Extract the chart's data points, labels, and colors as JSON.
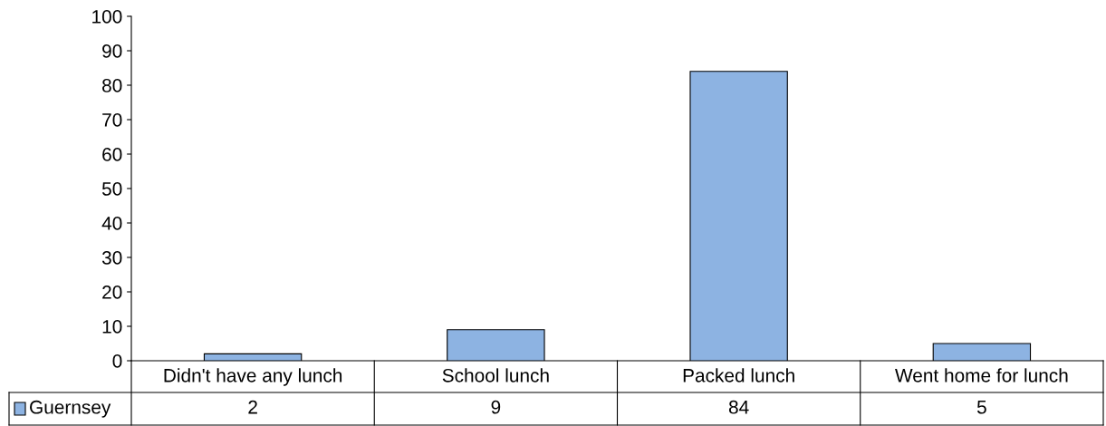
{
  "chart_data": {
    "type": "bar",
    "categories": [
      "Didn't have any lunch",
      "School lunch",
      "Packed lunch",
      "Went home for lunch"
    ],
    "series": [
      {
        "name": "Guernsey",
        "color": "#8db3e2",
        "values": [
          2,
          9,
          84,
          5
        ]
      }
    ],
    "ylim": [
      0,
      100
    ],
    "yticks": [
      0,
      10,
      20,
      30,
      40,
      50,
      60,
      70,
      80,
      90,
      100
    ],
    "grid": false,
    "legend": "bottom left",
    "data_labels": true
  }
}
